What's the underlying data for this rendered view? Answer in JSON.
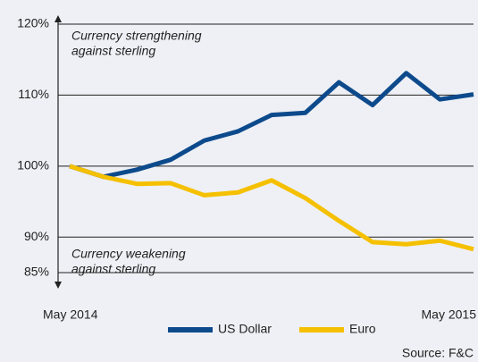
{
  "chart_data": {
    "type": "line",
    "categories": [
      "May 2014",
      null,
      null,
      null,
      null,
      null,
      null,
      null,
      null,
      null,
      null,
      null,
      "May 2015"
    ],
    "series": [
      {
        "name": "US Dollar",
        "color": "#0d4a8c",
        "values": [
          100,
          98.5,
          99.5,
          100.9,
          103.6,
          104.9,
          107.2,
          107.5,
          111.8,
          108.6,
          113.1,
          109.4,
          110.1
        ]
      },
      {
        "name": "Euro",
        "color": "#f5c000",
        "values": [
          100,
          98.5,
          97.5,
          97.6,
          95.9,
          96.3,
          98.0,
          95.5,
          92.3,
          89.3,
          89.0,
          89.5,
          88.3
        ]
      }
    ],
    "ylim": [
      85,
      120
    ],
    "yticks": [
      {
        "value": 85,
        "label": "85%"
      },
      {
        "value": 90,
        "label": "90%"
      },
      {
        "value": 100,
        "label": "100%"
      },
      {
        "value": 110,
        "label": "110%"
      },
      {
        "value": 120,
        "label": "120%"
      }
    ],
    "grid": true,
    "annotation_top": [
      "Currency strengthening",
      "against sterling"
    ],
    "annotation_bottom": [
      "Currency weakening",
      "against sterling"
    ],
    "source": "Source: F&C",
    "legend": "bottom"
  }
}
